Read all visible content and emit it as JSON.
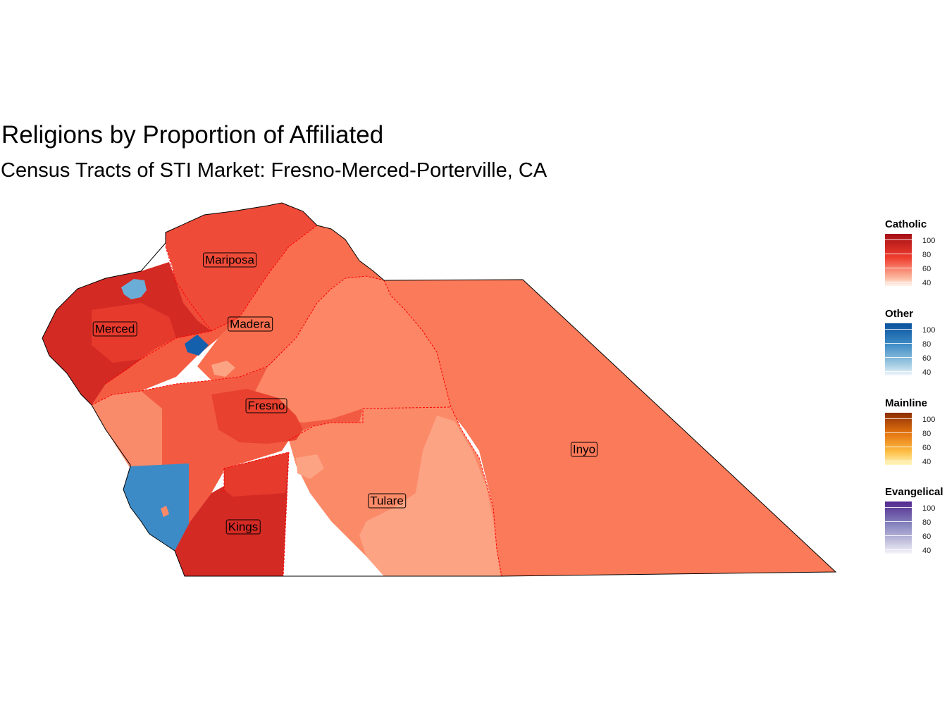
{
  "title": "Religions by Proportion of Affiliated",
  "subtitle": "Census Tracts of STI Market: Fresno-Merced-Porterville, CA",
  "counties": [
    {
      "name": "Mariposa",
      "dominant": "Catholic",
      "share_pct": 75
    },
    {
      "name": "Merced",
      "dominant": "Catholic",
      "share_pct": 85
    },
    {
      "name": "Madera",
      "dominant": "Catholic",
      "share_pct": 75
    },
    {
      "name": "Fresno",
      "dominant": "Catholic",
      "share_pct": 70
    },
    {
      "name": "Kings",
      "dominant": "Catholic",
      "share_pct": 85
    },
    {
      "name": "Tulare",
      "dominant": "Catholic",
      "share_pct": 62
    },
    {
      "name": "Inyo",
      "dominant": "Catholic",
      "share_pct": 65
    }
  ],
  "legends": [
    {
      "title": "Catholic",
      "labels": [
        "100",
        "80",
        "60",
        "40"
      ],
      "color_high": "#a50f15",
      "color_low": "#fff5f0"
    },
    {
      "title": "Other",
      "labels": [
        "100",
        "80",
        "60",
        "40"
      ],
      "color_high": "#08519c",
      "color_low": "#f0f6fd"
    },
    {
      "title": "Mainline",
      "labels": [
        "100",
        "80",
        "60",
        "40"
      ],
      "color_high": "#8c2d04",
      "color_low": "#fff7bc"
    },
    {
      "title": "Evangelical",
      "labels": [
        "100",
        "80",
        "60",
        "40"
      ],
      "color_high": "#54278f",
      "color_low": "#f5f4fa"
    }
  ],
  "colors": {
    "catholic_dark": "#d42a24",
    "catholic_mid": "#ef4b39",
    "catholic_light": "#fb7d5d",
    "catholic_pale": "#fca282",
    "other_mid": "#3d8bc6",
    "other_light": "#6aadd6",
    "other_dark": "#1560ad",
    "boundary": "#ff0000"
  }
}
